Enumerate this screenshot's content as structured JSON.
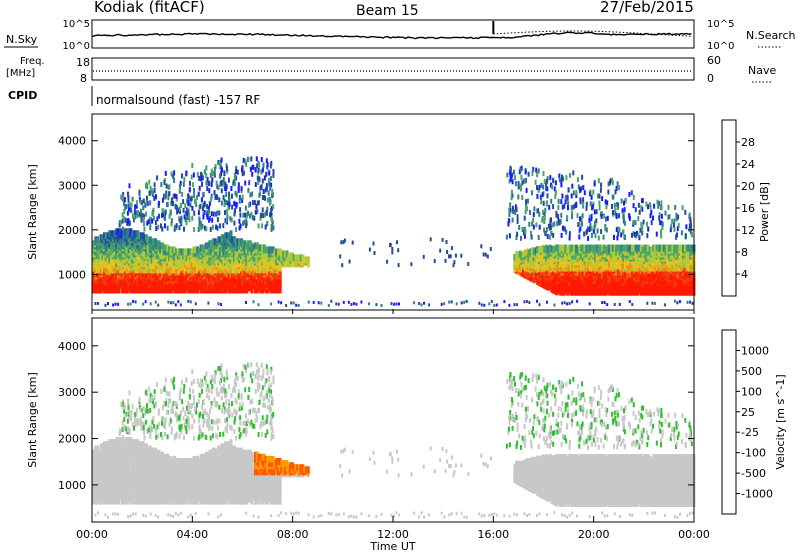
{
  "header": {
    "station": "Kodiak (fitACF)",
    "beam": "Beam 15",
    "date": "27/Feb/2015"
  },
  "top_panels": {
    "nsky_label": "N.Sky",
    "nsky_ticks": [
      "10^5",
      "10^0"
    ],
    "nsearch_label": "N.Search",
    "nsearch_ticks": [
      "10^5",
      "10^0"
    ],
    "freq_label": "Freq.",
    "freq_unit": "[MHz]",
    "freq_ticks": [
      "18",
      "8"
    ],
    "nave_label": "Nave",
    "nave_ticks": [
      "60",
      "0"
    ],
    "cpid_label": "CPID",
    "cpid_text": "normalsound (fast) -157 RF"
  },
  "colors": {
    "power_scale": [
      "#1a1aff",
      "#224a9e",
      "#2e7f86",
      "#4aa36a",
      "#a8cc3a",
      "#f0c020",
      "#f08a10",
      "#f04010",
      "#ff1a00"
    ],
    "velocity_scale": [
      "#ff0000",
      "#ff5500",
      "#ff9a00",
      "#ffd060",
      "#c8c8c8",
      "#c8c8c8",
      "#2fbf2f",
      "#2e8f5e",
      "#2a5fa0",
      "#1a1acc"
    ],
    "ground_scatter": "#c8c8c8"
  },
  "chart_data": [
    {
      "type": "heatmap",
      "panel": "power",
      "ylabel": "Slant Range [km]",
      "y_ticks": [
        1000,
        2000,
        3000,
        4000
      ],
      "ylim": [
        200,
        4600
      ],
      "x_ticks": [
        "00:00",
        "04:00",
        "08:00",
        "12:00",
        "16:00",
        "20:00",
        "00:00"
      ],
      "xlim_hours": [
        0,
        24
      ],
      "colorbar_label": "Power [dB]",
      "colorbar_ticks": [
        "4",
        "8",
        "12",
        "16",
        "20",
        "24",
        "28"
      ],
      "colorbar_range": [
        0,
        32
      ]
    },
    {
      "type": "heatmap",
      "panel": "velocity",
      "ylabel": "Slant Range [km]",
      "y_ticks": [
        1000,
        2000,
        3000,
        4000
      ],
      "ylim": [
        200,
        4600
      ],
      "x_ticks": [
        "00:00",
        "04:00",
        "08:00",
        "12:00",
        "16:00",
        "20:00",
        "00:00"
      ],
      "xlim_hours": [
        0,
        24
      ],
      "xlabel": "Time UT",
      "colorbar_label": "Velocity [m s^-1]",
      "colorbar_ticks": [
        "1000",
        "500",
        "100",
        "25",
        "-25",
        "-100",
        "-500",
        "-1000"
      ]
    }
  ]
}
